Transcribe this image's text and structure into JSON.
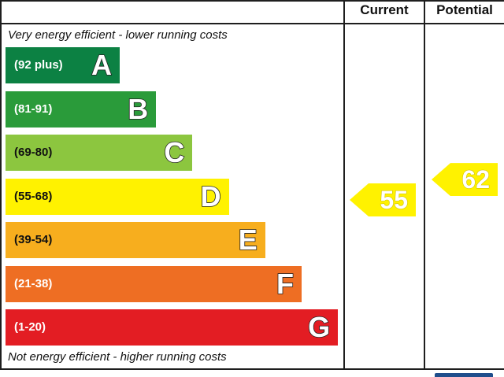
{
  "headers": {
    "current": "Current",
    "potential": "Potential"
  },
  "captions": {
    "top": "Very energy efficient - lower running costs",
    "bottom": "Not energy efficient - higher running costs"
  },
  "chart_data": {
    "type": "bar",
    "categories": [
      "A",
      "B",
      "C",
      "D",
      "E",
      "F",
      "G"
    ],
    "ranges": [
      "(92 plus)",
      "(81-91)",
      "(69-80)",
      "(55-68)",
      "(39-54)",
      "(21-38)",
      "(1-20)"
    ],
    "colors": [
      "#0c8143",
      "#2a9b3a",
      "#8cc63f",
      "#fff200",
      "#f7ae1e",
      "#ee6e23",
      "#e31d23"
    ],
    "current": {
      "value": 55,
      "label": "55"
    },
    "potential": {
      "value": 62,
      "label": "62"
    },
    "xlabel": "",
    "ylabel": ""
  }
}
